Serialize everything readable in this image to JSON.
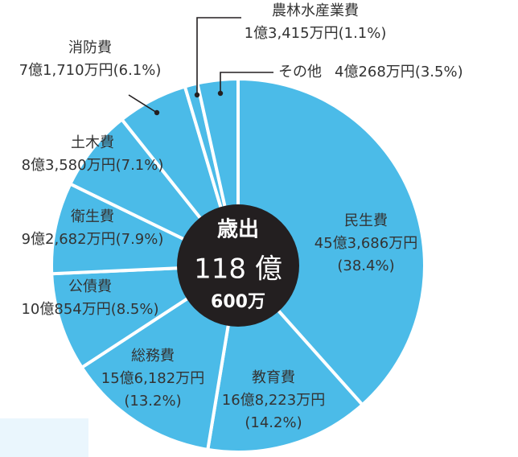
{
  "chart_data": {
    "type": "pie",
    "title": "",
    "total": {
      "line1": "歳出",
      "line2": "118 億",
      "line3": "600万"
    },
    "colors": {
      "slice": "#4bbbe8",
      "border": "#ffffff",
      "center": "#231f20",
      "text": "#333333",
      "center_text": "#ffffff"
    },
    "slices": [
      {
        "key": "minsei",
        "category": "民生費",
        "amount": "45億3,686万円",
        "percent_label": "(38.4%)",
        "percent": 38.4
      },
      {
        "key": "kyoiku",
        "category": "教育費",
        "amount": "16億8,223万円",
        "percent_label": "(14.2%)",
        "percent": 14.2
      },
      {
        "key": "somu",
        "category": "総務費",
        "amount": "15億6,182万円",
        "percent_label": "(13.2%)",
        "percent": 13.2
      },
      {
        "key": "kosai",
        "category": "公債費",
        "amount": "10億854万円",
        "percent_label": "(8.5%)",
        "percent": 8.5
      },
      {
        "key": "eisei",
        "category": "衛生費",
        "amount": "9億2,682万円",
        "percent_label": "(7.9%)",
        "percent": 7.9
      },
      {
        "key": "doboku",
        "category": "土木費",
        "amount": "8億3,580万円",
        "percent_label": "(7.1%)",
        "percent": 7.1
      },
      {
        "key": "shobo",
        "category": "消防費",
        "amount": "7億1,710万円",
        "percent_label": "(6.1%)",
        "percent": 6.1
      },
      {
        "key": "norin",
        "category": "農林水産業費",
        "amount": "1億3,415万円",
        "percent_label": "(1.1%)",
        "percent": 1.1
      },
      {
        "key": "sonota",
        "category": "その他",
        "amount": "4億268万円",
        "percent_label": "(3.5%)",
        "percent": 3.5
      }
    ]
  }
}
